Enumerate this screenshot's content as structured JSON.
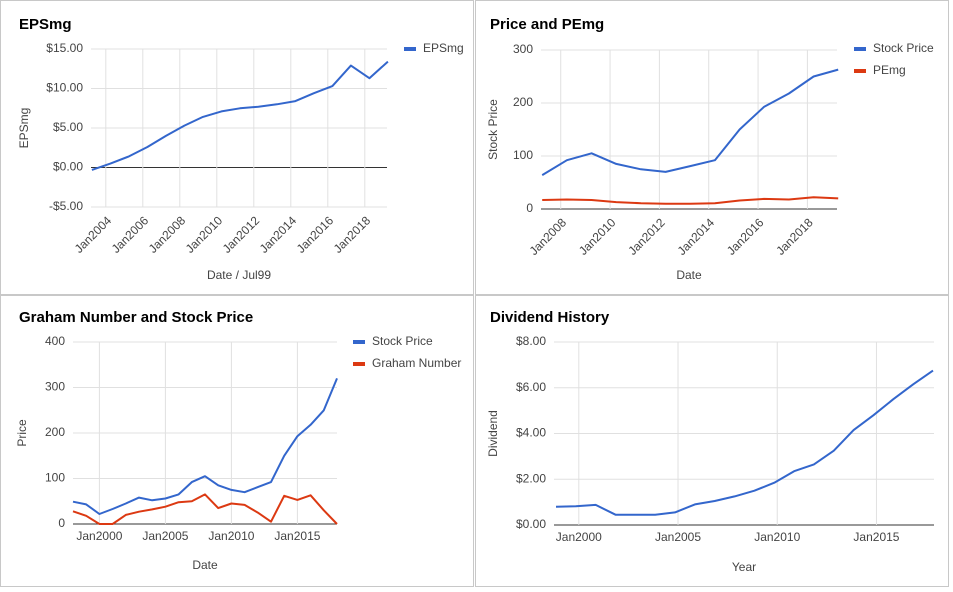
{
  "chart_data": [
    {
      "type": "line",
      "title": "EPSmg",
      "xlabel": "Date / Jul99",
      "ylabel": "EPSmg",
      "x": [
        2003.25,
        2004.25,
        2005.25,
        2006.25,
        2007.25,
        2008.25,
        2009.25,
        2010.25,
        2011.25,
        2012.25,
        2013.25,
        2014.25,
        2015.25,
        2016.25,
        2017.25,
        2018.25,
        2019.25
      ],
      "series": [
        {
          "name": "EPSmg",
          "color": "#3366cc",
          "values": [
            -0.3,
            0.5,
            1.4,
            2.6,
            4.0,
            5.3,
            6.4,
            7.1,
            7.5,
            7.7,
            8.0,
            8.4,
            9.4,
            10.3,
            12.9,
            11.3,
            13.4
          ]
        }
      ],
      "xlim": [
        2003.2,
        2019.2
      ],
      "xticks": [
        {
          "value": 2004,
          "label": "Jan2004"
        },
        {
          "value": 2006,
          "label": "Jan2006"
        },
        {
          "value": 2008,
          "label": "Jan2008"
        },
        {
          "value": 2010,
          "label": "Jan2010"
        },
        {
          "value": 2012,
          "label": "Jan2012"
        },
        {
          "value": 2014,
          "label": "Jan2014"
        },
        {
          "value": 2016,
          "label": "Jan2016"
        },
        {
          "value": 2018,
          "label": "Jan2018"
        }
      ],
      "ylim": [
        -5,
        15
      ],
      "yticks": [
        {
          "value": 15,
          "label": "$15.00"
        },
        {
          "value": 10,
          "label": "$10.00"
        },
        {
          "value": 5,
          "label": "$5.00"
        },
        {
          "value": 0,
          "label": "$0.00"
        },
        {
          "value": -5,
          "label": "-$5.00"
        }
      ],
      "grid": true,
      "legend": "right"
    },
    {
      "type": "line",
      "title": "Price and PEmg",
      "xlabel": "Date",
      "ylabel": "Stock Price",
      "x": [
        2007.25,
        2008.25,
        2009.25,
        2010.25,
        2011.25,
        2012.25,
        2013.25,
        2014.25,
        2015.25,
        2016.25,
        2017.25,
        2018.25,
        2019.25
      ],
      "series": [
        {
          "name": "Stock Price",
          "color": "#3366cc",
          "values": [
            64,
            92,
            105,
            85,
            75,
            70,
            81,
            92,
            150,
            193,
            218,
            250,
            263
          ]
        },
        {
          "name": "PEmg",
          "color": "#dc3912",
          "values": [
            17,
            18,
            17,
            13,
            11,
            10,
            10,
            11,
            16,
            19,
            18,
            22,
            20
          ]
        }
      ],
      "xlim": [
        2007.2,
        2019.2
      ],
      "xticks": [
        {
          "value": 2008,
          "label": "Jan2008"
        },
        {
          "value": 2010,
          "label": "Jan2010"
        },
        {
          "value": 2012,
          "label": "Jan2012"
        },
        {
          "value": 2014,
          "label": "Jan2014"
        },
        {
          "value": 2016,
          "label": "Jan2016"
        },
        {
          "value": 2018,
          "label": "Jan2018"
        }
      ],
      "ylim": [
        0,
        300
      ],
      "yticks": [
        300,
        200,
        100,
        0
      ],
      "grid": true,
      "legend": "right"
    },
    {
      "type": "line",
      "title": "Graham Number and Stock Price",
      "xlabel": "Date",
      "ylabel": "Price",
      "x": [
        1998,
        1999,
        2000,
        2001,
        2002,
        2003,
        2004,
        2005,
        2006,
        2007,
        2008,
        2009,
        2010,
        2011,
        2012,
        2013,
        2014,
        2015,
        2016,
        2017,
        2018
      ],
      "series": [
        {
          "name": "Stock Price",
          "color": "#3366cc",
          "values": [
            49,
            43,
            22,
            33,
            45,
            58,
            52,
            56,
            65,
            92,
            105,
            85,
            75,
            70,
            81,
            92,
            150,
            193,
            218,
            250,
            320
          ]
        },
        {
          "name": "Graham Number",
          "color": "#dc3912",
          "values": [
            28,
            18,
            0,
            0,
            20,
            27,
            32,
            38,
            48,
            50,
            65,
            35,
            45,
            42,
            25,
            5,
            62,
            53,
            63,
            30,
            0
          ]
        }
      ],
      "xlim": [
        1998,
        2018
      ],
      "xticks": [
        {
          "value": 2000,
          "label": "Jan2000"
        },
        {
          "value": 2005,
          "label": "Jan2005"
        },
        {
          "value": 2010,
          "label": "Jan2010"
        },
        {
          "value": 2015,
          "label": "Jan2015"
        }
      ],
      "ylim": [
        0,
        400
      ],
      "yticks": [
        400,
        300,
        200,
        100,
        0
      ],
      "grid": true,
      "legend": "right"
    },
    {
      "type": "line",
      "title": "Dividend History",
      "xlabel": "Year",
      "ylabel": "Dividend",
      "x": [
        1998.85,
        1999.85,
        2000.85,
        2001.85,
        2002.85,
        2003.85,
        2004.85,
        2005.85,
        2006.85,
        2007.85,
        2008.85,
        2009.85,
        2010.85,
        2011.85,
        2012.85,
        2013.85,
        2014.85,
        2015.85,
        2016.85,
        2017.85
      ],
      "series": [
        {
          "name": "Dividend",
          "color": "#3366cc",
          "values": [
            0.8,
            0.82,
            0.88,
            0.45,
            0.45,
            0.45,
            0.55,
            0.9,
            1.05,
            1.25,
            1.5,
            1.85,
            2.35,
            2.65,
            3.25,
            4.15,
            4.8,
            5.5,
            6.15,
            6.75
          ]
        }
      ],
      "xlim": [
        1998.75,
        2017.9
      ],
      "xticks": [
        {
          "value": 2000,
          "label": "Jan2000"
        },
        {
          "value": 2005,
          "label": "Jan2005"
        },
        {
          "value": 2010,
          "label": "Jan2010"
        },
        {
          "value": 2015,
          "label": "Jan2015"
        }
      ],
      "ylim": [
        0,
        8
      ],
      "yticks": [
        {
          "value": 8,
          "label": "$8.00"
        },
        {
          "value": 6,
          "label": "$6.00"
        },
        {
          "value": 4,
          "label": "$4.00"
        },
        {
          "value": 2,
          "label": "$2.00"
        },
        {
          "value": 0,
          "label": "$0.00"
        }
      ],
      "grid": true,
      "legend": "none"
    }
  ]
}
